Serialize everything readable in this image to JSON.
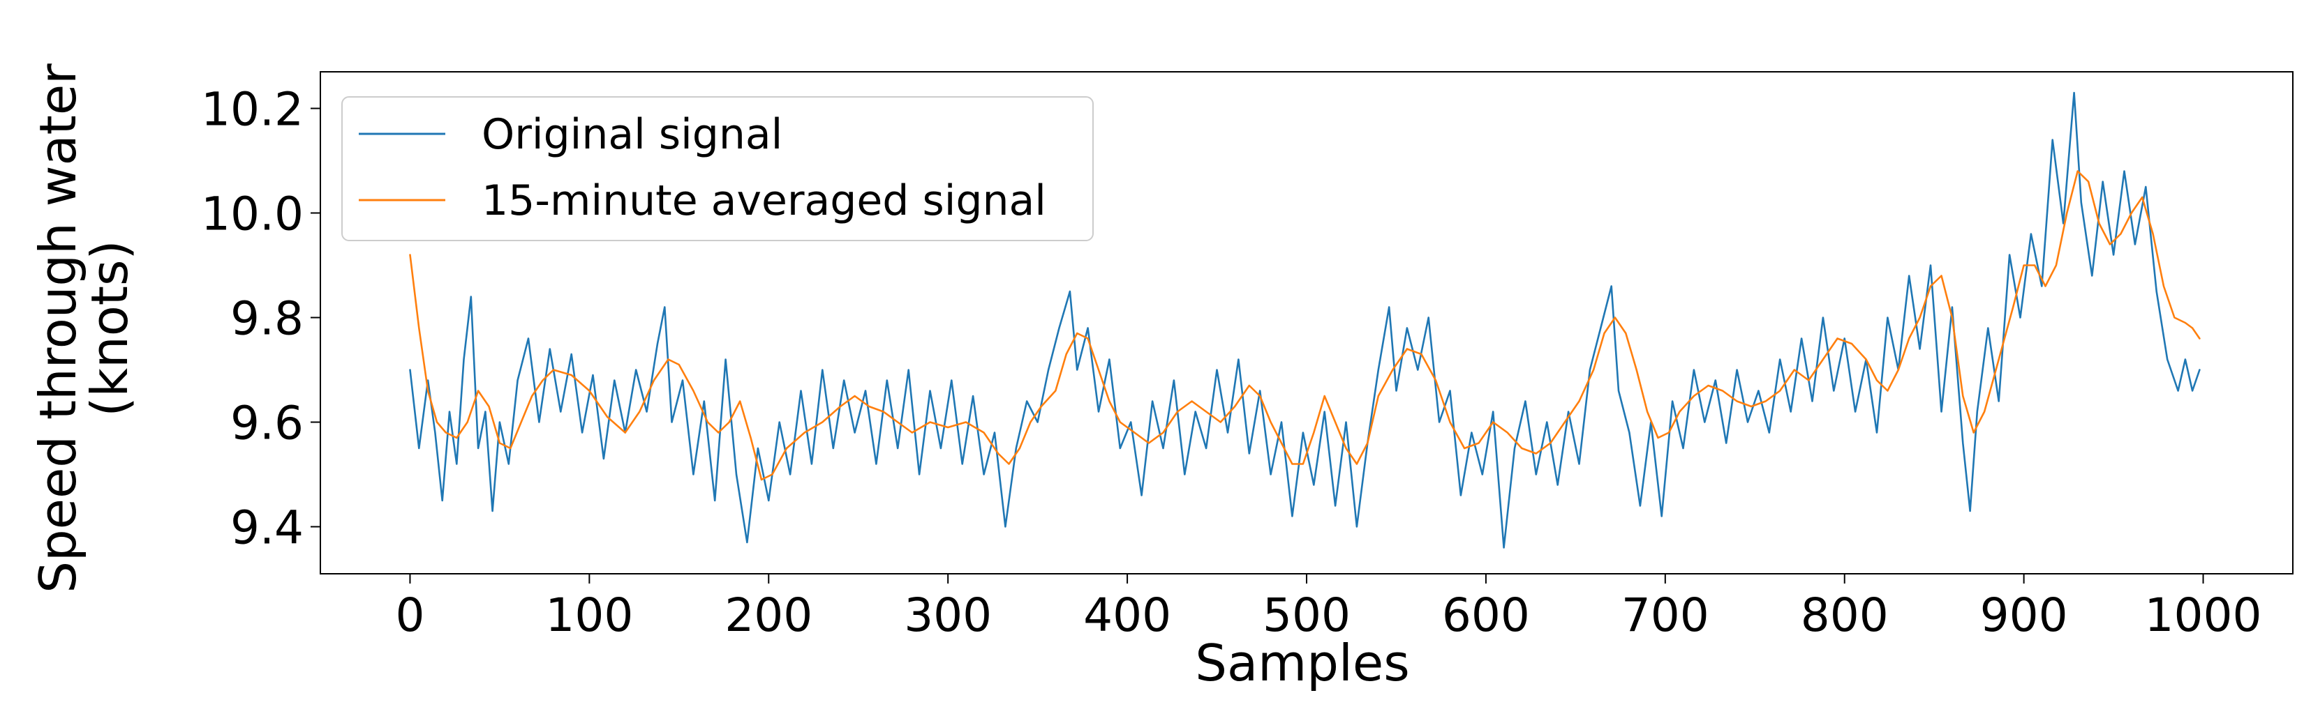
{
  "chart_data": {
    "type": "line",
    "title": "",
    "xlabel": "Samples",
    "ylabel_lines": [
      "Speed through water",
      "(knots)"
    ],
    "xlim": [
      -50,
      1050
    ],
    "ylim": [
      9.31,
      10.27
    ],
    "x_ticks": [
      0,
      100,
      200,
      300,
      400,
      500,
      600,
      700,
      800,
      900,
      1000
    ],
    "x_tick_labels": [
      "0",
      "100",
      "200",
      "300",
      "400",
      "500",
      "600",
      "700",
      "800",
      "900",
      "1000"
    ],
    "y_ticks": [
      9.4,
      9.6,
      9.8,
      10.0,
      10.2
    ],
    "y_tick_labels": [
      "9.4",
      "9.6",
      "9.8",
      "10.0",
      "10.2"
    ],
    "grid": false,
    "legend_position": "top-left",
    "series": [
      {
        "name": "Original signal",
        "color": "#1f77b4",
        "points": [
          [
            0,
            9.7
          ],
          [
            5,
            9.55
          ],
          [
            10,
            9.68
          ],
          [
            14,
            9.58
          ],
          [
            18,
            9.45
          ],
          [
            22,
            9.62
          ],
          [
            26,
            9.52
          ],
          [
            30,
            9.72
          ],
          [
            34,
            9.84
          ],
          [
            38,
            9.55
          ],
          [
            42,
            9.62
          ],
          [
            46,
            9.43
          ],
          [
            50,
            9.6
          ],
          [
            55,
            9.52
          ],
          [
            60,
            9.68
          ],
          [
            66,
            9.76
          ],
          [
            72,
            9.6
          ],
          [
            78,
            9.74
          ],
          [
            84,
            9.62
          ],
          [
            90,
            9.73
          ],
          [
            96,
            9.58
          ],
          [
            102,
            9.69
          ],
          [
            108,
            9.53
          ],
          [
            114,
            9.68
          ],
          [
            120,
            9.58
          ],
          [
            126,
            9.7
          ],
          [
            132,
            9.62
          ],
          [
            138,
            9.75
          ],
          [
            142,
            9.82
          ],
          [
            146,
            9.6
          ],
          [
            152,
            9.68
          ],
          [
            158,
            9.5
          ],
          [
            164,
            9.64
          ],
          [
            170,
            9.45
          ],
          [
            176,
            9.72
          ],
          [
            182,
            9.5
          ],
          [
            188,
            9.37
          ],
          [
            194,
            9.55
          ],
          [
            200,
            9.45
          ],
          [
            206,
            9.6
          ],
          [
            212,
            9.5
          ],
          [
            218,
            9.66
          ],
          [
            224,
            9.52
          ],
          [
            230,
            9.7
          ],
          [
            236,
            9.55
          ],
          [
            242,
            9.68
          ],
          [
            248,
            9.58
          ],
          [
            254,
            9.66
          ],
          [
            260,
            9.52
          ],
          [
            266,
            9.68
          ],
          [
            272,
            9.55
          ],
          [
            278,
            9.7
          ],
          [
            284,
            9.5
          ],
          [
            290,
            9.66
          ],
          [
            296,
            9.55
          ],
          [
            302,
            9.68
          ],
          [
            308,
            9.52
          ],
          [
            314,
            9.65
          ],
          [
            320,
            9.5
          ],
          [
            326,
            9.58
          ],
          [
            332,
            9.4
          ],
          [
            338,
            9.55
          ],
          [
            344,
            9.64
          ],
          [
            350,
            9.6
          ],
          [
            356,
            9.7
          ],
          [
            362,
            9.78
          ],
          [
            368,
            9.85
          ],
          [
            372,
            9.7
          ],
          [
            378,
            9.78
          ],
          [
            384,
            9.62
          ],
          [
            390,
            9.72
          ],
          [
            396,
            9.55
          ],
          [
            402,
            9.6
          ],
          [
            408,
            9.46
          ],
          [
            414,
            9.64
          ],
          [
            420,
            9.55
          ],
          [
            426,
            9.68
          ],
          [
            432,
            9.5
          ],
          [
            438,
            9.62
          ],
          [
            444,
            9.55
          ],
          [
            450,
            9.7
          ],
          [
            456,
            9.58
          ],
          [
            462,
            9.72
          ],
          [
            468,
            9.54
          ],
          [
            474,
            9.66
          ],
          [
            480,
            9.5
          ],
          [
            486,
            9.6
          ],
          [
            492,
            9.42
          ],
          [
            498,
            9.58
          ],
          [
            504,
            9.48
          ],
          [
            510,
            9.62
          ],
          [
            516,
            9.44
          ],
          [
            522,
            9.6
          ],
          [
            528,
            9.4
          ],
          [
            534,
            9.56
          ],
          [
            540,
            9.7
          ],
          [
            546,
            9.82
          ],
          [
            550,
            9.66
          ],
          [
            556,
            9.78
          ],
          [
            562,
            9.7
          ],
          [
            568,
            9.8
          ],
          [
            574,
            9.6
          ],
          [
            580,
            9.66
          ],
          [
            586,
            9.46
          ],
          [
            592,
            9.58
          ],
          [
            598,
            9.5
          ],
          [
            604,
            9.62
          ],
          [
            610,
            9.36
          ],
          [
            616,
            9.55
          ],
          [
            622,
            9.64
          ],
          [
            628,
            9.5
          ],
          [
            634,
            9.6
          ],
          [
            640,
            9.48
          ],
          [
            646,
            9.62
          ],
          [
            652,
            9.52
          ],
          [
            658,
            9.7
          ],
          [
            664,
            9.78
          ],
          [
            670,
            9.86
          ],
          [
            674,
            9.66
          ],
          [
            680,
            9.58
          ],
          [
            686,
            9.44
          ],
          [
            692,
            9.6
          ],
          [
            698,
            9.42
          ],
          [
            704,
            9.64
          ],
          [
            710,
            9.55
          ],
          [
            716,
            9.7
          ],
          [
            722,
            9.6
          ],
          [
            728,
            9.68
          ],
          [
            734,
            9.56
          ],
          [
            740,
            9.7
          ],
          [
            746,
            9.6
          ],
          [
            752,
            9.66
          ],
          [
            758,
            9.58
          ],
          [
            764,
            9.72
          ],
          [
            770,
            9.62
          ],
          [
            776,
            9.76
          ],
          [
            782,
            9.64
          ],
          [
            788,
            9.8
          ],
          [
            794,
            9.66
          ],
          [
            800,
            9.76
          ],
          [
            806,
            9.62
          ],
          [
            812,
            9.72
          ],
          [
            818,
            9.58
          ],
          [
            824,
            9.8
          ],
          [
            830,
            9.7
          ],
          [
            836,
            9.88
          ],
          [
            842,
            9.74
          ],
          [
            848,
            9.9
          ],
          [
            854,
            9.62
          ],
          [
            860,
            9.82
          ],
          [
            866,
            9.56
          ],
          [
            870,
            9.43
          ],
          [
            874,
            9.62
          ],
          [
            880,
            9.78
          ],
          [
            886,
            9.64
          ],
          [
            892,
            9.92
          ],
          [
            898,
            9.8
          ],
          [
            904,
            9.96
          ],
          [
            910,
            9.86
          ],
          [
            916,
            10.14
          ],
          [
            922,
            9.98
          ],
          [
            928,
            10.23
          ],
          [
            932,
            10.02
          ],
          [
            938,
            9.88
          ],
          [
            944,
            10.06
          ],
          [
            950,
            9.92
          ],
          [
            956,
            10.08
          ],
          [
            962,
            9.94
          ],
          [
            968,
            10.05
          ],
          [
            974,
            9.85
          ],
          [
            980,
            9.72
          ],
          [
            986,
            9.66
          ],
          [
            990,
            9.72
          ],
          [
            994,
            9.66
          ],
          [
            998,
            9.7
          ]
        ]
      },
      {
        "name": "15-minute averaged signal",
        "color": "#ff7f0e",
        "points": [
          [
            0,
            9.92
          ],
          [
            5,
            9.78
          ],
          [
            10,
            9.66
          ],
          [
            15,
            9.6
          ],
          [
            20,
            9.58
          ],
          [
            26,
            9.57
          ],
          [
            32,
            9.6
          ],
          [
            38,
            9.66
          ],
          [
            44,
            9.63
          ],
          [
            50,
            9.56
          ],
          [
            56,
            9.55
          ],
          [
            62,
            9.6
          ],
          [
            68,
            9.65
          ],
          [
            74,
            9.68
          ],
          [
            80,
            9.7
          ],
          [
            90,
            9.69
          ],
          [
            100,
            9.66
          ],
          [
            110,
            9.61
          ],
          [
            120,
            9.58
          ],
          [
            128,
            9.62
          ],
          [
            136,
            9.68
          ],
          [
            144,
            9.72
          ],
          [
            150,
            9.71
          ],
          [
            158,
            9.66
          ],
          [
            166,
            9.6
          ],
          [
            172,
            9.58
          ],
          [
            178,
            9.6
          ],
          [
            184,
            9.64
          ],
          [
            190,
            9.57
          ],
          [
            196,
            9.49
          ],
          [
            202,
            9.5
          ],
          [
            210,
            9.55
          ],
          [
            220,
            9.58
          ],
          [
            230,
            9.6
          ],
          [
            240,
            9.63
          ],
          [
            248,
            9.65
          ],
          [
            256,
            9.63
          ],
          [
            264,
            9.62
          ],
          [
            272,
            9.6
          ],
          [
            280,
            9.58
          ],
          [
            290,
            9.6
          ],
          [
            300,
            9.59
          ],
          [
            310,
            9.6
          ],
          [
            320,
            9.58
          ],
          [
            328,
            9.54
          ],
          [
            334,
            9.52
          ],
          [
            340,
            9.55
          ],
          [
            346,
            9.6
          ],
          [
            352,
            9.63
          ],
          [
            360,
            9.66
          ],
          [
            366,
            9.73
          ],
          [
            372,
            9.77
          ],
          [
            378,
            9.76
          ],
          [
            384,
            9.7
          ],
          [
            390,
            9.64
          ],
          [
            396,
            9.6
          ],
          [
            404,
            9.58
          ],
          [
            412,
            9.56
          ],
          [
            420,
            9.58
          ],
          [
            428,
            9.62
          ],
          [
            436,
            9.64
          ],
          [
            444,
            9.62
          ],
          [
            452,
            9.6
          ],
          [
            460,
            9.63
          ],
          [
            468,
            9.67
          ],
          [
            474,
            9.65
          ],
          [
            480,
            9.6
          ],
          [
            486,
            9.56
          ],
          [
            492,
            9.52
          ],
          [
            498,
            9.52
          ],
          [
            504,
            9.58
          ],
          [
            510,
            9.65
          ],
          [
            516,
            9.6
          ],
          [
            522,
            9.55
          ],
          [
            528,
            9.52
          ],
          [
            534,
            9.56
          ],
          [
            540,
            9.65
          ],
          [
            548,
            9.7
          ],
          [
            556,
            9.74
          ],
          [
            564,
            9.73
          ],
          [
            572,
            9.68
          ],
          [
            580,
            9.6
          ],
          [
            588,
            9.55
          ],
          [
            596,
            9.56
          ],
          [
            604,
            9.6
          ],
          [
            612,
            9.58
          ],
          [
            620,
            9.55
          ],
          [
            628,
            9.54
          ],
          [
            636,
            9.56
          ],
          [
            644,
            9.6
          ],
          [
            652,
            9.64
          ],
          [
            660,
            9.7
          ],
          [
            666,
            9.77
          ],
          [
            672,
            9.8
          ],
          [
            678,
            9.77
          ],
          [
            684,
            9.7
          ],
          [
            690,
            9.62
          ],
          [
            696,
            9.57
          ],
          [
            702,
            9.58
          ],
          [
            708,
            9.62
          ],
          [
            716,
            9.65
          ],
          [
            724,
            9.67
          ],
          [
            732,
            9.66
          ],
          [
            740,
            9.64
          ],
          [
            748,
            9.63
          ],
          [
            756,
            9.64
          ],
          [
            764,
            9.66
          ],
          [
            772,
            9.7
          ],
          [
            780,
            9.68
          ],
          [
            788,
            9.72
          ],
          [
            796,
            9.76
          ],
          [
            804,
            9.75
          ],
          [
            812,
            9.72
          ],
          [
            818,
            9.68
          ],
          [
            824,
            9.66
          ],
          [
            830,
            9.7
          ],
          [
            836,
            9.76
          ],
          [
            842,
            9.8
          ],
          [
            848,
            9.86
          ],
          [
            854,
            9.88
          ],
          [
            860,
            9.8
          ],
          [
            866,
            9.65
          ],
          [
            872,
            9.58
          ],
          [
            878,
            9.62
          ],
          [
            886,
            9.72
          ],
          [
            894,
            9.82
          ],
          [
            900,
            9.9
          ],
          [
            906,
            9.9
          ],
          [
            912,
            9.86
          ],
          [
            918,
            9.9
          ],
          [
            924,
            10.0
          ],
          [
            930,
            10.08
          ],
          [
            936,
            10.06
          ],
          [
            942,
            9.98
          ],
          [
            948,
            9.94
          ],
          [
            954,
            9.96
          ],
          [
            960,
            10.0
          ],
          [
            966,
            10.03
          ],
          [
            972,
            9.96
          ],
          [
            978,
            9.86
          ],
          [
            984,
            9.8
          ],
          [
            990,
            9.79
          ],
          [
            994,
            9.78
          ],
          [
            998,
            9.76
          ]
        ]
      }
    ]
  }
}
